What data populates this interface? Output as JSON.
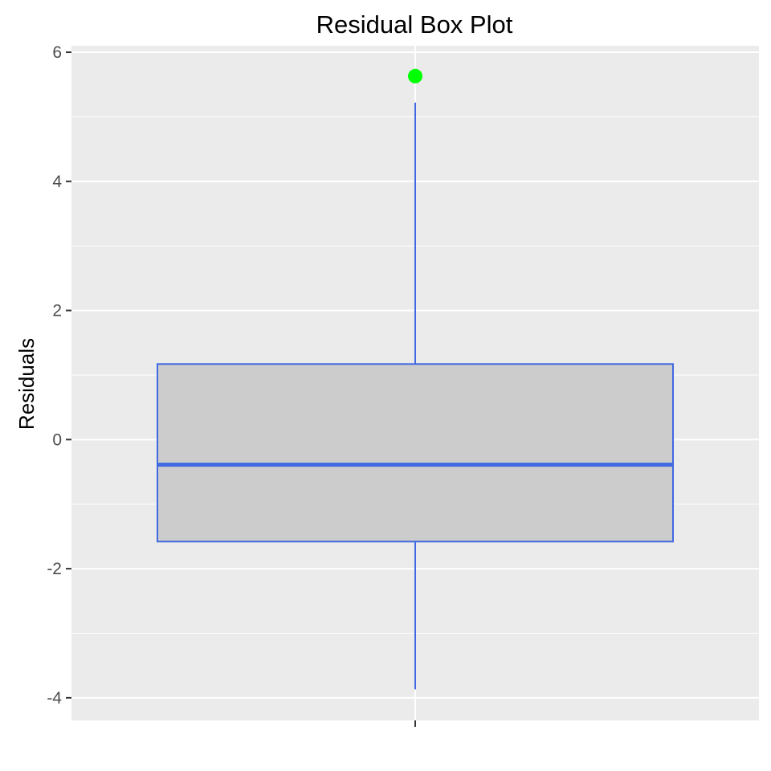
{
  "chart_data": {
    "type": "box",
    "title": "Residual Box Plot",
    "xlabel": "",
    "ylabel": "Residuals",
    "ylim": [
      -4.35,
      6.1
    ],
    "y_ticks": [
      -4,
      -2,
      0,
      2,
      4,
      6
    ],
    "y_tick_labels": [
      "-4",
      "-2",
      "0",
      "2",
      "4",
      "6"
    ],
    "grid": true,
    "box": {
      "min": -3.87,
      "q1": -1.58,
      "median": -0.39,
      "q3": 1.17,
      "max": 5.22
    },
    "outliers": [
      5.63
    ],
    "colors": {
      "panel_background": "#ebebeb",
      "grid": "#ffffff",
      "box_fill": "#cccccc",
      "box_line": "#4169e1",
      "outlier": "#00ff00",
      "tick": "#333333"
    }
  }
}
